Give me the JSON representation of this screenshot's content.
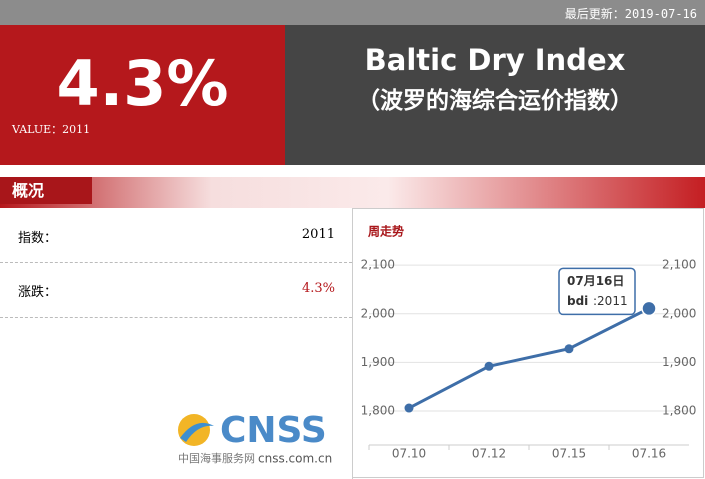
{
  "header": {
    "updated": "最后更新：2019-07-16"
  },
  "hero": {
    "change": "4.3%",
    "value_caption": "VALUE：2011",
    "title": "Baltic Dry Index",
    "subtitle": "（波罗的海综合运价指数）"
  },
  "section": {
    "title": "概况"
  },
  "table": {
    "rows": [
      [
        "指数：",
        "2011"
      ],
      [
        "涨跌：",
        "4.3%"
      ]
    ]
  },
  "logo": {
    "brand": "CNSS",
    "name": "中国海事服务网",
    "site": "cnss.com.cn"
  },
  "chart_data": {
    "type": "line",
    "title": "周走势",
    "categories": [
      "07.10",
      "07.12",
      "07.15",
      "07.16"
    ],
    "series": [
      {
        "name": "bdi",
        "color": "#3e6ea8",
        "values": [
          1806,
          1892,
          1928,
          2011
        ]
      }
    ],
    "ylim": [
      1730,
      2125
    ],
    "yticks": [
      {
        "value": 1800,
        "label": "1,800"
      },
      {
        "value": 1900,
        "label": "1,900"
      },
      {
        "value": 2000,
        "label": "2,000"
      },
      {
        "value": 2100,
        "label": "2,100"
      }
    ],
    "y2lim": [
      1730,
      2125
    ],
    "y2ticks": [
      {
        "value": 1800,
        "label": "1,800"
      },
      {
        "value": 1900,
        "label": "1,900"
      },
      {
        "value": 2000,
        "label": "2,000"
      },
      {
        "value": 2100,
        "label": "2,100"
      }
    ],
    "grid": true,
    "tooltip": {
      "title": "07月16日",
      "value_label": ":2011"
    }
  }
}
